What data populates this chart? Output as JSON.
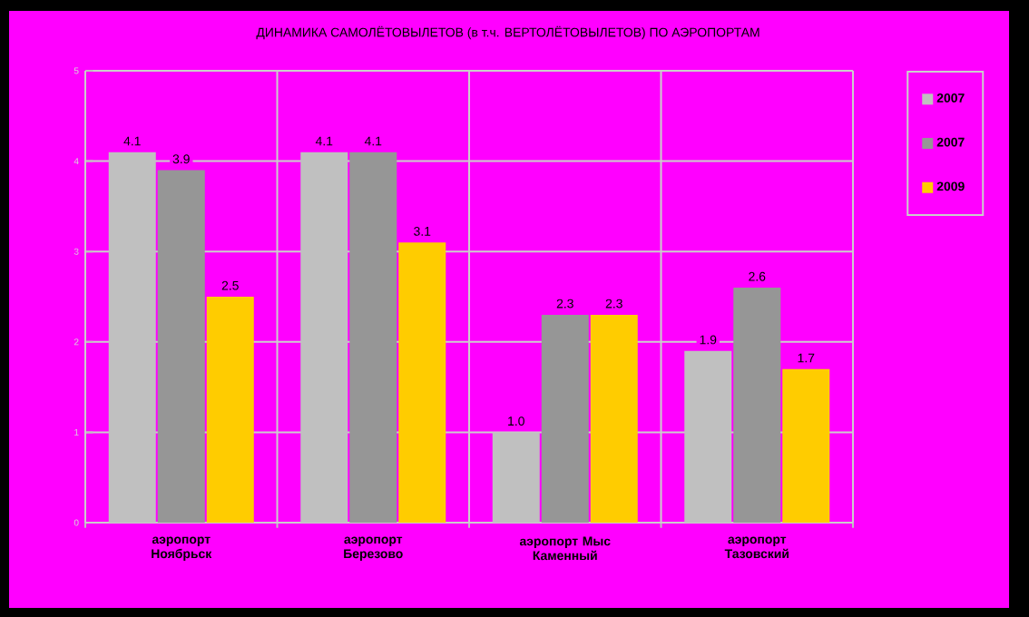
{
  "chart_data": {
    "type": "bar",
    "title": "ДИНАМИКА САМОЛЁТОВЫЛЕТОВ (в т.ч. ВЕРТОЛЁТОВЫЛЕТОВ) ПО АЭРОПОРТАМ",
    "categories": [
      "аэропорт Ноябрьск",
      "аэропорт Березово",
      "аэропорт Мыс Каменный",
      "аэропорт Тазовский"
    ],
    "series": [
      {
        "name": "2007",
        "color": "#c0c0c0",
        "values": [
          4.1,
          4.1,
          1.0,
          1.9
        ],
        "value_labels": [
          "4.1",
          "4.1",
          "1.0",
          "1.9"
        ]
      },
      {
        "name": "2007",
        "color": "#969696",
        "values": [
          3.9,
          4.1,
          2.3,
          2.6
        ],
        "value_labels": [
          "3.9",
          "4.1",
          "2.3",
          "2.6"
        ]
      },
      {
        "name": "2009",
        "color": "#ffcc00",
        "values": [
          2.5,
          3.1,
          2.3,
          1.7
        ],
        "value_labels": [
          "2.5",
          "3.1",
          "2.3",
          "1.7"
        ]
      }
    ],
    "ylim": [
      0,
      5
    ],
    "yticks": [
      0,
      1,
      2,
      3,
      4,
      5
    ],
    "grid": true,
    "legend": "right"
  }
}
